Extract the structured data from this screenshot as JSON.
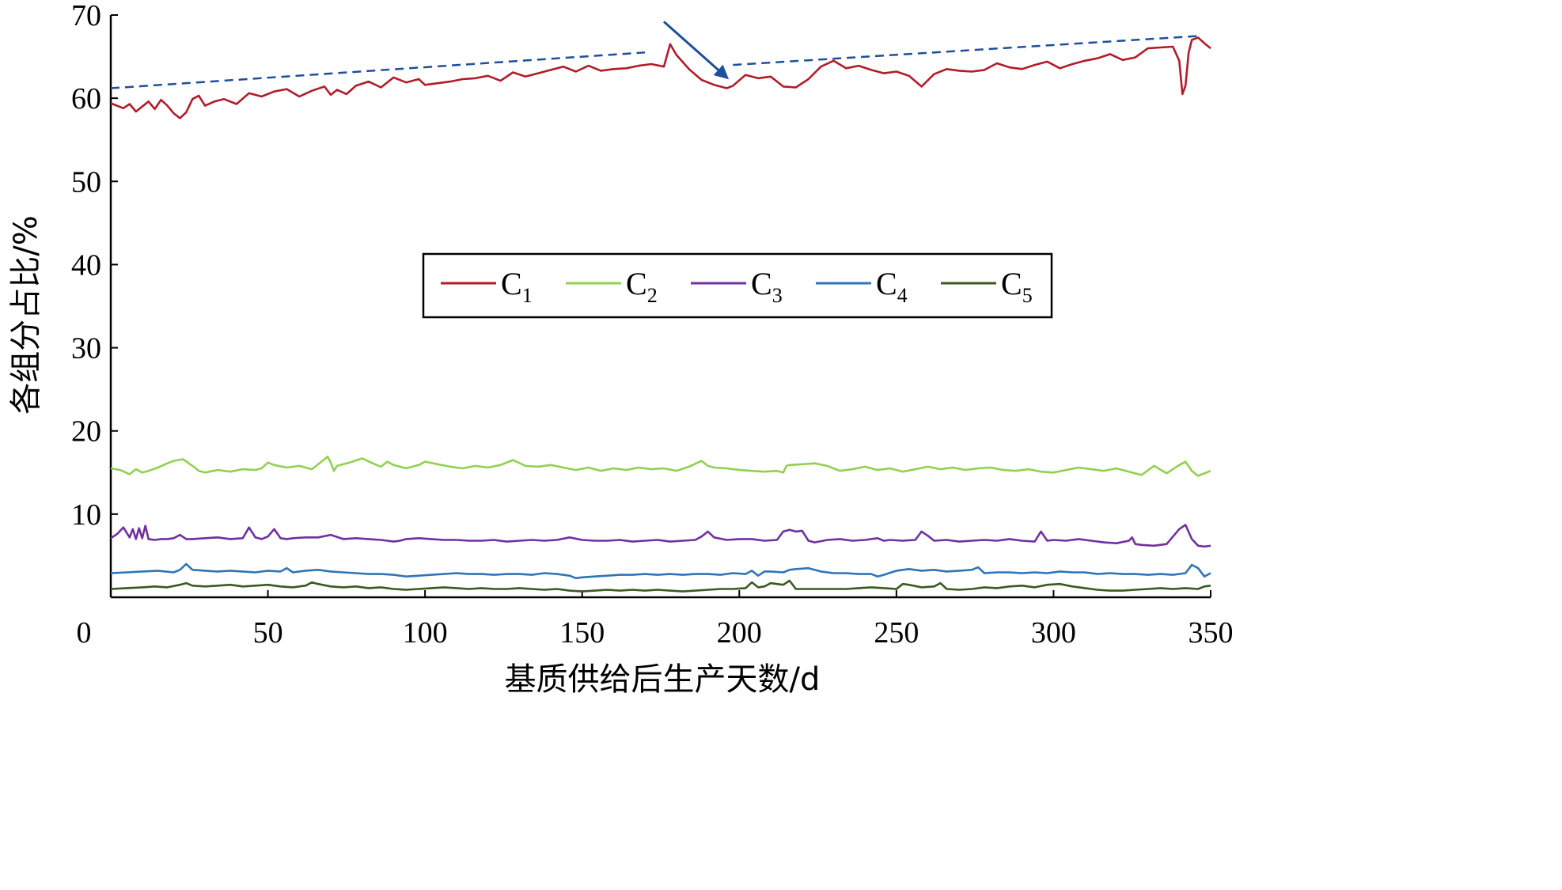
{
  "chart_data": {
    "type": "line",
    "xlabel": "基质供给后生产天数/d",
    "ylabel": "各组分占比/%",
    "xlim": [
      0,
      350
    ],
    "ylim": [
      0,
      70
    ],
    "xticks": [
      0,
      50,
      100,
      150,
      200,
      250,
      300,
      350
    ],
    "yticks": [
      10,
      20,
      30,
      40,
      50,
      60,
      70
    ],
    "grid": false,
    "legend": {
      "placement": "center",
      "entries": [
        {
          "main": "C",
          "sub": "1"
        },
        {
          "main": "C",
          "sub": "2"
        },
        {
          "main": "C",
          "sub": "3"
        },
        {
          "main": "C",
          "sub": "4"
        },
        {
          "main": "C",
          "sub": "5"
        }
      ]
    },
    "series": [
      {
        "name": "C1",
        "color": "#b01c2a",
        "x": [
          0,
          4,
          6,
          8,
          10,
          12,
          14,
          16,
          18,
          20,
          22,
          24,
          26,
          28,
          30,
          33,
          36,
          40,
          44,
          48,
          52,
          56,
          60,
          64,
          68,
          70,
          72,
          75,
          78,
          82,
          86,
          90,
          94,
          98,
          100,
          104,
          108,
          112,
          116,
          120,
          124,
          128,
          132,
          136,
          140,
          144,
          148,
          152,
          156,
          160,
          164,
          168,
          172,
          176,
          178,
          180,
          184,
          188,
          192,
          196,
          198,
          202,
          206,
          210,
          214,
          218,
          222,
          226,
          230,
          234,
          238,
          242,
          246,
          250,
          254,
          258,
          262,
          266,
          270,
          274,
          278,
          282,
          286,
          290,
          294,
          298,
          302,
          306,
          310,
          314,
          318,
          322,
          326,
          330,
          334,
          338,
          340,
          341,
          342,
          343,
          344,
          346,
          348,
          350
        ],
        "y": [
          59.4,
          58.8,
          59.3,
          58.4,
          59.0,
          59.6,
          58.7,
          59.8,
          59.1,
          58.2,
          57.6,
          58.3,
          59.9,
          60.3,
          59.1,
          59.6,
          59.9,
          59.3,
          60.6,
          60.2,
          60.8,
          61.1,
          60.2,
          60.9,
          61.4,
          60.4,
          61.0,
          60.5,
          61.5,
          62.0,
          61.3,
          62.5,
          61.9,
          62.3,
          61.6,
          61.8,
          62.0,
          62.3,
          62.4,
          62.7,
          62.1,
          63.1,
          62.6,
          63.0,
          63.4,
          63.8,
          63.2,
          63.9,
          63.3,
          63.5,
          63.6,
          63.9,
          64.1,
          63.8,
          66.5,
          65.2,
          63.5,
          62.2,
          61.6,
          61.2,
          61.5,
          62.8,
          62.4,
          62.6,
          61.4,
          61.3,
          62.3,
          63.8,
          64.5,
          63.6,
          63.9,
          63.4,
          63.0,
          63.2,
          62.7,
          61.4,
          62.9,
          63.5,
          63.3,
          63.2,
          63.4,
          64.2,
          63.7,
          63.5,
          64.0,
          64.4,
          63.6,
          64.1,
          64.5,
          64.8,
          65.3,
          64.6,
          64.9,
          66.0,
          66.1,
          66.2,
          64.5,
          60.5,
          61.5,
          65.5,
          67.0,
          67.3,
          66.6,
          66.0
        ]
      },
      {
        "name": "C2",
        "color": "#92d050",
        "x": [
          0,
          3,
          6,
          8,
          10,
          12,
          15,
          18,
          20,
          23,
          26,
          28,
          30,
          34,
          38,
          42,
          46,
          48,
          50,
          52,
          56,
          60,
          64,
          68,
          69,
          70,
          71,
          72,
          76,
          80,
          84,
          86,
          88,
          90,
          94,
          98,
          100,
          104,
          108,
          112,
          116,
          120,
          124,
          128,
          132,
          136,
          140,
          144,
          148,
          152,
          156,
          160,
          164,
          168,
          172,
          176,
          180,
          184,
          188,
          190,
          192,
          196,
          200,
          204,
          208,
          212,
          214,
          215,
          216,
          220,
          224,
          228,
          232,
          236,
          240,
          244,
          248,
          252,
          256,
          260,
          264,
          268,
          272,
          276,
          280,
          284,
          288,
          292,
          296,
          300,
          304,
          308,
          312,
          316,
          320,
          324,
          328,
          332,
          336,
          340,
          342,
          344,
          346,
          348,
          350
        ],
        "y": [
          15.5,
          15.3,
          14.8,
          15.4,
          15.0,
          15.2,
          15.6,
          16.1,
          16.4,
          16.6,
          15.8,
          15.2,
          15.0,
          15.3,
          15.1,
          15.4,
          15.3,
          15.5,
          16.2,
          15.9,
          15.6,
          15.8,
          15.4,
          16.6,
          16.9,
          16.2,
          15.2,
          15.8,
          16.2,
          16.7,
          16.0,
          15.7,
          16.3,
          15.9,
          15.5,
          15.9,
          16.3,
          16.0,
          15.7,
          15.5,
          15.8,
          15.6,
          15.9,
          16.5,
          15.8,
          15.7,
          15.9,
          15.6,
          15.3,
          15.6,
          15.2,
          15.5,
          15.3,
          15.6,
          15.4,
          15.5,
          15.2,
          15.7,
          16.4,
          15.8,
          15.6,
          15.5,
          15.3,
          15.2,
          15.1,
          15.2,
          15.0,
          15.8,
          15.9,
          16.0,
          16.1,
          15.8,
          15.2,
          15.4,
          15.7,
          15.3,
          15.5,
          15.1,
          15.4,
          15.7,
          15.4,
          15.6,
          15.3,
          15.5,
          15.6,
          15.3,
          15.2,
          15.4,
          15.1,
          15.0,
          15.3,
          15.6,
          15.4,
          15.2,
          15.5,
          15.1,
          14.7,
          15.8,
          14.9,
          15.9,
          16.3,
          15.2,
          14.6,
          14.9,
          15.2
        ]
      },
      {
        "name": "C3",
        "color": "#7030a0",
        "x": [
          0,
          2,
          4,
          6,
          7,
          8,
          9,
          10,
          11,
          12,
          14,
          16,
          18,
          20,
          22,
          24,
          26,
          30,
          34,
          38,
          42,
          44,
          46,
          48,
          50,
          52,
          54,
          56,
          58,
          62,
          66,
          70,
          74,
          78,
          82,
          86,
          88,
          90,
          92,
          94,
          98,
          102,
          106,
          110,
          114,
          118,
          122,
          126,
          130,
          134,
          138,
          142,
          146,
          150,
          154,
          158,
          162,
          166,
          170,
          174,
          178,
          182,
          186,
          188,
          190,
          192,
          196,
          200,
          204,
          208,
          212,
          214,
          216,
          218,
          220,
          222,
          224,
          228,
          232,
          236,
          240,
          244,
          246,
          248,
          252,
          256,
          258,
          260,
          262,
          266,
          270,
          274,
          278,
          282,
          286,
          290,
          294,
          296,
          298,
          300,
          304,
          308,
          312,
          316,
          320,
          324,
          325,
          326,
          328,
          332,
          336,
          340,
          342,
          344,
          346,
          348,
          350
        ],
        "y": [
          7.1,
          7.6,
          8.4,
          7.2,
          8.2,
          7.0,
          8.3,
          7.1,
          8.6,
          7.0,
          6.9,
          7.0,
          7.0,
          7.1,
          7.5,
          7.0,
          7.0,
          7.1,
          7.2,
          7.0,
          7.1,
          8.4,
          7.2,
          7.0,
          7.3,
          8.2,
          7.1,
          7.0,
          7.1,
          7.2,
          7.2,
          7.5,
          7.0,
          7.1,
          7.0,
          6.9,
          6.8,
          6.7,
          6.8,
          7.0,
          7.1,
          7.0,
          6.9,
          6.9,
          6.8,
          6.8,
          6.9,
          6.7,
          6.8,
          6.9,
          6.8,
          6.9,
          7.2,
          6.9,
          6.8,
          6.8,
          6.9,
          6.7,
          6.8,
          6.9,
          6.7,
          6.8,
          6.9,
          7.3,
          7.9,
          7.2,
          6.9,
          7.0,
          7.0,
          6.8,
          6.9,
          7.9,
          8.1,
          7.9,
          8.0,
          6.8,
          6.6,
          6.9,
          7.0,
          6.8,
          6.9,
          7.1,
          6.8,
          6.9,
          6.8,
          6.9,
          7.9,
          7.4,
          6.8,
          6.9,
          6.7,
          6.8,
          6.9,
          6.8,
          7.0,
          6.8,
          6.7,
          7.9,
          6.8,
          6.9,
          6.8,
          7.0,
          6.8,
          6.6,
          6.5,
          6.8,
          7.2,
          6.4,
          6.3,
          6.2,
          6.4,
          8.2,
          8.7,
          7.0,
          6.2,
          6.1,
          6.2
        ]
      },
      {
        "name": "C4",
        "color": "#2e75b6",
        "x": [
          0,
          5,
          10,
          15,
          20,
          22,
          24,
          26,
          30,
          34,
          38,
          42,
          46,
          50,
          54,
          56,
          58,
          62,
          66,
          70,
          74,
          78,
          82,
          86,
          90,
          94,
          98,
          102,
          106,
          110,
          114,
          118,
          122,
          126,
          130,
          134,
          138,
          142,
          146,
          148,
          150,
          154,
          158,
          162,
          166,
          170,
          174,
          178,
          182,
          186,
          190,
          194,
          198,
          202,
          204,
          206,
          208,
          210,
          214,
          216,
          218,
          222,
          226,
          230,
          234,
          238,
          242,
          244,
          246,
          250,
          254,
          258,
          262,
          266,
          270,
          274,
          276,
          278,
          282,
          286,
          290,
          294,
          298,
          302,
          306,
          310,
          314,
          318,
          322,
          326,
          330,
          334,
          338,
          342,
          344,
          346,
          348,
          350
        ],
        "y": [
          2.9,
          3.0,
          3.1,
          3.2,
          3.0,
          3.3,
          4.0,
          3.3,
          3.2,
          3.1,
          3.2,
          3.1,
          3.0,
          3.2,
          3.1,
          3.5,
          3.0,
          3.2,
          3.3,
          3.1,
          3.0,
          2.9,
          2.8,
          2.8,
          2.7,
          2.5,
          2.6,
          2.7,
          2.8,
          2.9,
          2.8,
          2.8,
          2.7,
          2.8,
          2.8,
          2.7,
          2.9,
          2.8,
          2.6,
          2.3,
          2.4,
          2.5,
          2.6,
          2.7,
          2.7,
          2.8,
          2.7,
          2.8,
          2.7,
          2.8,
          2.8,
          2.7,
          2.9,
          2.8,
          3.2,
          2.6,
          3.1,
          3.1,
          3.0,
          3.3,
          3.4,
          3.5,
          3.1,
          2.9,
          2.9,
          2.8,
          2.8,
          2.5,
          2.7,
          3.2,
          3.4,
          3.2,
          3.3,
          3.1,
          3.2,
          3.3,
          3.6,
          2.9,
          3.0,
          3.0,
          2.9,
          3.0,
          2.9,
          3.1,
          3.0,
          3.0,
          2.8,
          2.9,
          2.8,
          2.8,
          2.7,
          2.8,
          2.7,
          2.9,
          3.9,
          3.5,
          2.5,
          2.9
        ]
      },
      {
        "name": "C5",
        "color": "#3a5a1f",
        "x": [
          0,
          5,
          10,
          14,
          18,
          22,
          24,
          26,
          30,
          34,
          38,
          42,
          46,
          50,
          54,
          58,
          62,
          64,
          66,
          70,
          74,
          78,
          82,
          86,
          90,
          94,
          98,
          102,
          106,
          110,
          114,
          118,
          122,
          126,
          130,
          134,
          138,
          142,
          146,
          150,
          154,
          158,
          162,
          166,
          170,
          174,
          178,
          182,
          186,
          190,
          194,
          198,
          202,
          204,
          206,
          208,
          210,
          212,
          214,
          216,
          218,
          222,
          226,
          230,
          234,
          238,
          242,
          246,
          250,
          252,
          254,
          258,
          262,
          264,
          266,
          270,
          274,
          278,
          282,
          286,
          290,
          294,
          298,
          302,
          306,
          310,
          314,
          318,
          322,
          326,
          330,
          334,
          338,
          342,
          346,
          348,
          350
        ],
        "y": [
          1.0,
          1.1,
          1.2,
          1.3,
          1.2,
          1.5,
          1.7,
          1.4,
          1.3,
          1.4,
          1.5,
          1.3,
          1.4,
          1.5,
          1.3,
          1.2,
          1.4,
          1.8,
          1.6,
          1.3,
          1.2,
          1.3,
          1.1,
          1.2,
          1.0,
          0.9,
          1.0,
          1.1,
          1.2,
          1.1,
          1.0,
          1.1,
          1.0,
          1.0,
          1.1,
          1.0,
          0.9,
          1.0,
          0.8,
          0.7,
          0.8,
          0.9,
          0.8,
          0.9,
          0.8,
          0.9,
          0.8,
          0.7,
          0.8,
          0.9,
          1.0,
          1.0,
          1.1,
          1.8,
          1.2,
          1.3,
          1.7,
          1.6,
          1.5,
          2.0,
          1.0,
          1.0,
          1.0,
          1.0,
          1.0,
          1.1,
          1.2,
          1.1,
          1.0,
          1.6,
          1.5,
          1.2,
          1.3,
          1.7,
          1.0,
          0.9,
          1.0,
          1.2,
          1.1,
          1.3,
          1.4,
          1.2,
          1.5,
          1.6,
          1.3,
          1.1,
          0.9,
          0.8,
          0.8,
          0.9,
          1.0,
          1.1,
          1.0,
          1.1,
          1.0,
          1.3,
          1.4
        ]
      }
    ],
    "annotations": [
      {
        "type": "dashed-trend",
        "color": "#1f4e9c",
        "from": [
          0,
          61.2
        ],
        "to": [
          170,
          65.5
        ]
      },
      {
        "type": "dashed-trend",
        "color": "#1f4e9c",
        "from": [
          198,
          64.0
        ],
        "to": [
          347,
          67.5
        ]
      },
      {
        "type": "arrow",
        "color": "#1f4e9c",
        "from": [
          176,
          69.2
        ],
        "to": [
          196,
          62.5
        ]
      }
    ]
  }
}
